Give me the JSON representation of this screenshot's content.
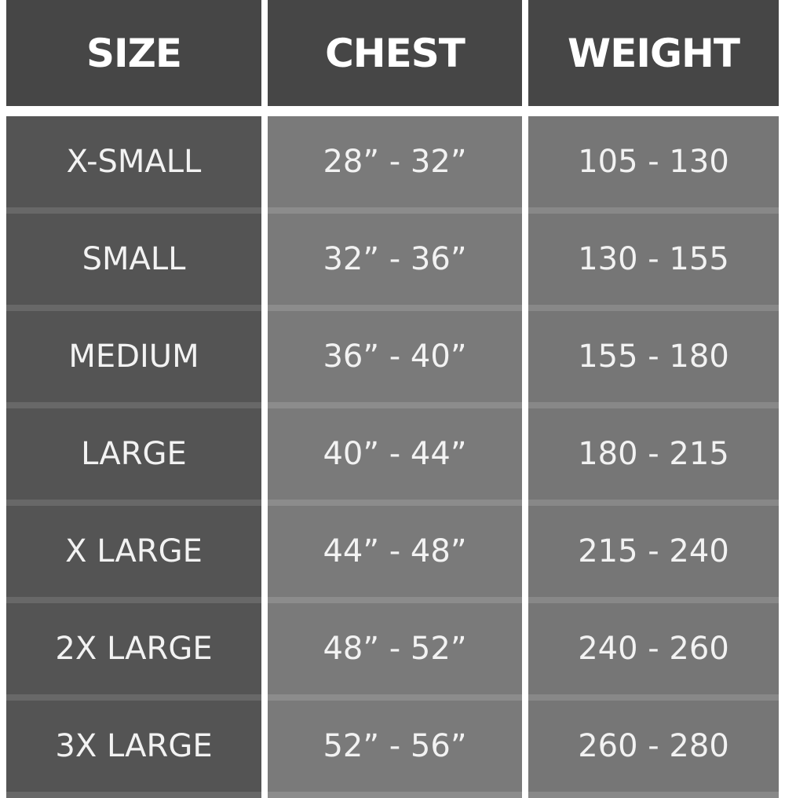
{
  "headers": [
    "SIZE",
    "CHEST",
    "WEIGHT"
  ],
  "rows": [
    {
      "size": "X-SMALL",
      "chest": "28” - 32”",
      "weight": "105 - 130"
    },
    {
      "size": "SMALL",
      "chest": "32” - 36”",
      "weight": "130 - 155"
    },
    {
      "size": "MEDIUM",
      "chest": "36” - 40”",
      "weight": "155 - 180"
    },
    {
      "size": "LARGE",
      "chest": "40” - 44”",
      "weight": "180 - 215"
    },
    {
      "size": "X LARGE",
      "chest": "44” - 48”",
      "weight": "215 - 240"
    },
    {
      "size": "2X LARGE",
      "chest": "48” - 52”",
      "weight": "240 - 260"
    },
    {
      "size": "3X LARGE",
      "chest": "52” - 56”",
      "weight": "260 - 280"
    }
  ],
  "colors": {
    "header": "#464646",
    "size_column": "#545454",
    "chest_column": "#7a7a7a",
    "weight_column": "#767676"
  }
}
